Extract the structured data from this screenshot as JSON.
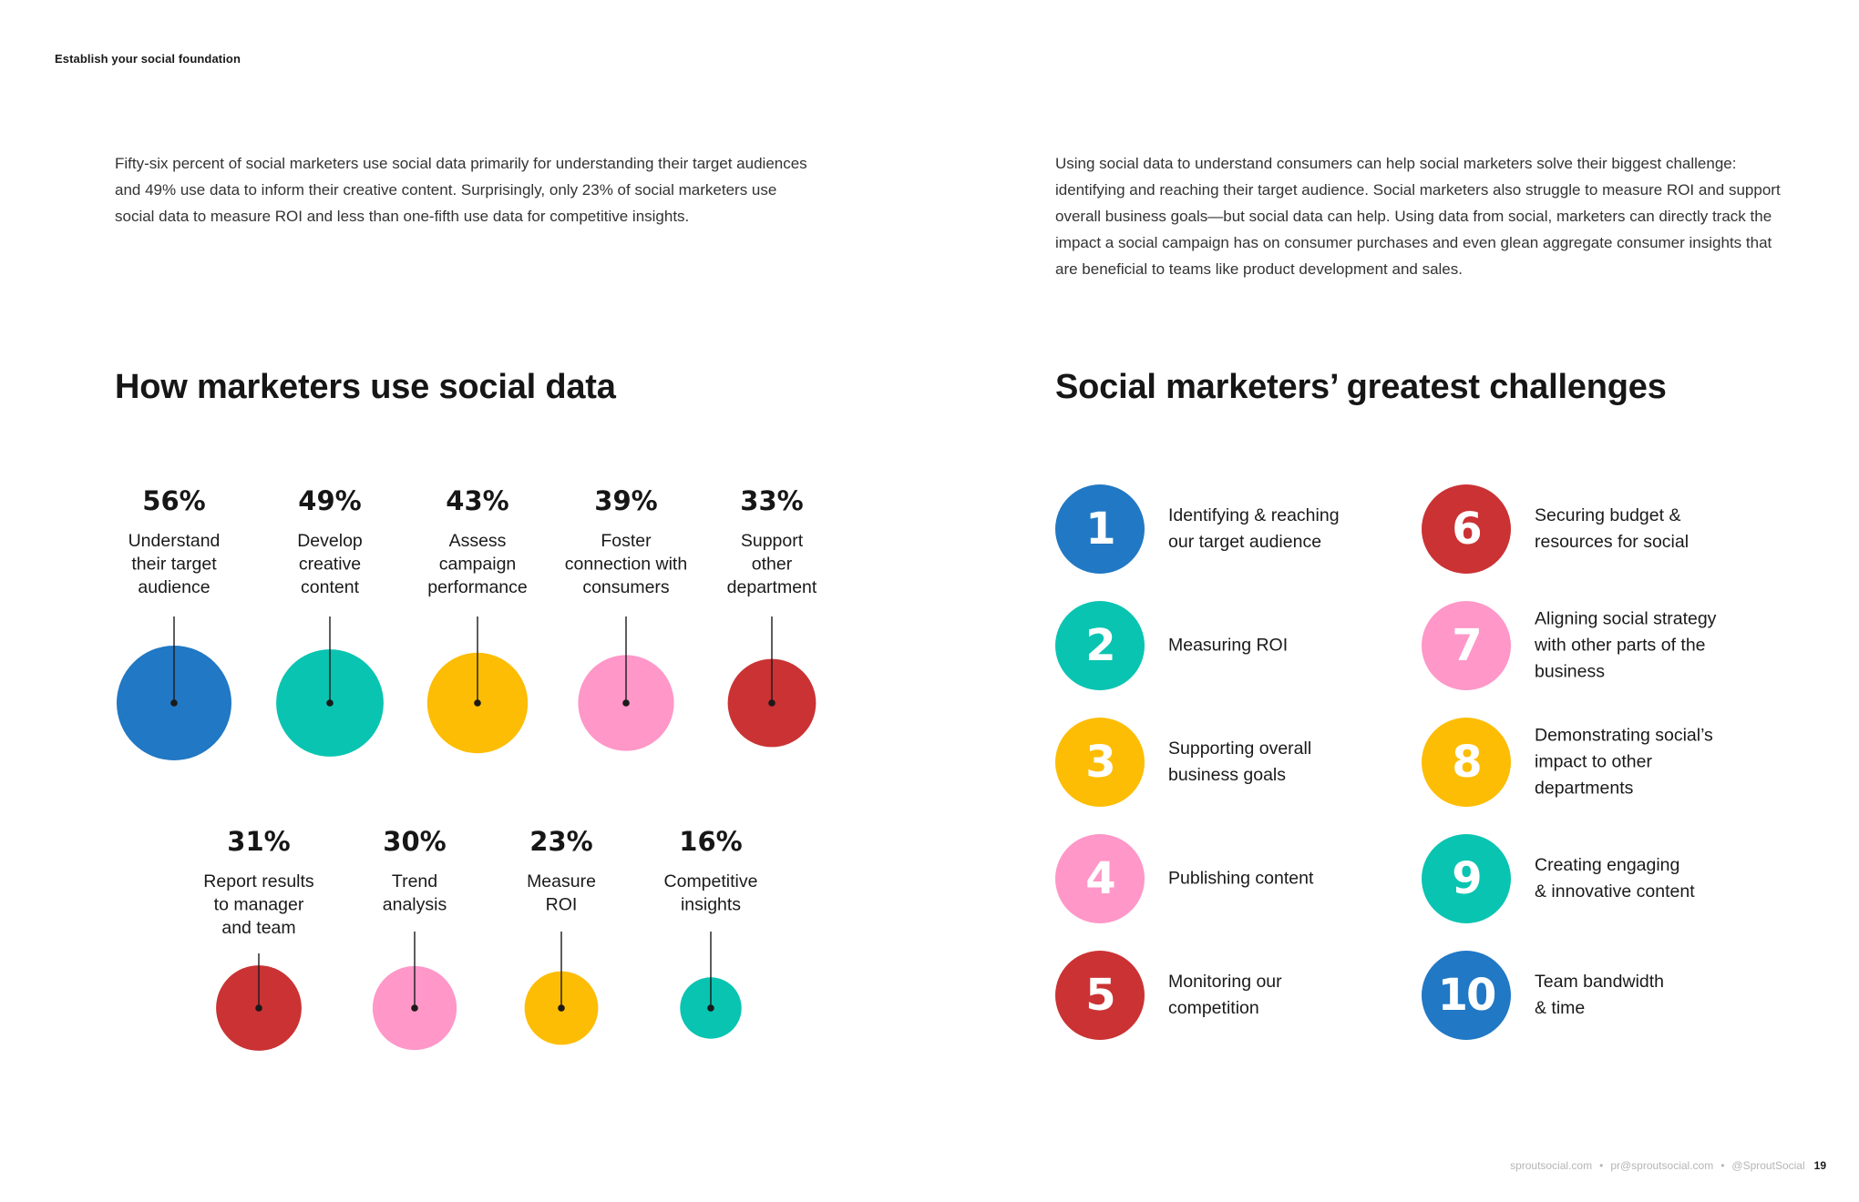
{
  "page": {
    "section_label": "Establish your social foundation",
    "intro_left": "Fifty-six percent of social marketers use social data primarily for understanding their target audiences and 49% use data to inform their creative content. Surprisingly, only 23% of social marketers use social data to measure ROI and less than one-fifth use data for competitive insights.",
    "intro_right": "Using social data to understand consumers can help social marketers solve their biggest challenge: identifying and reaching their target audience. Social marketers also struggle to measure ROI and support overall business goals—but social data can help. Using data from social, marketers can directly track the impact a social campaign has on consumer purchases and even glean aggregate consumer insights that are beneficial to teams like product development and sales.",
    "heading_left": "How marketers use social data",
    "heading_right": "Social marketers’ greatest challenges"
  },
  "chart_data": {
    "type": "bubble",
    "title": "How marketers use social data",
    "unit": "%",
    "items": [
      {
        "value": 56,
        "pct_label": "56%",
        "label_lines": [
          "Understand",
          "their target",
          "audience"
        ],
        "color": "#2178C4"
      },
      {
        "value": 49,
        "pct_label": "49%",
        "label_lines": [
          "Develop",
          "creative",
          "content"
        ],
        "color": "#09C4B1"
      },
      {
        "value": 43,
        "pct_label": "43%",
        "label_lines": [
          "Assess",
          "campaign",
          "performance"
        ],
        "color": "#FDBD04"
      },
      {
        "value": 39,
        "pct_label": "39%",
        "label_lines": [
          "Foster",
          "connection with",
          "consumers"
        ],
        "color": "#FF97C8"
      },
      {
        "value": 33,
        "pct_label": "33%",
        "label_lines": [
          "Support",
          "other",
          "department"
        ],
        "color": "#CB3234"
      },
      {
        "value": 31,
        "pct_label": "31%",
        "label_lines": [
          "Report results",
          "to manager",
          "and team"
        ],
        "color": "#CB3234"
      },
      {
        "value": 30,
        "pct_label": "30%",
        "label_lines": [
          "Trend",
          "analysis"
        ],
        "color": "#FF97C8"
      },
      {
        "value": 23,
        "pct_label": "23%",
        "label_lines": [
          "Measure",
          "ROI"
        ],
        "color": "#FDBD04"
      },
      {
        "value": 16,
        "pct_label": "16%",
        "label_lines": [
          "Competitive",
          "insights"
        ],
        "color": "#09C4B1"
      }
    ]
  },
  "challenges": [
    {
      "number": "1",
      "text": "Identifying & reaching\nour target audience",
      "color": "#2178C4"
    },
    {
      "number": "2",
      "text": "Measuring ROI",
      "color": "#09C4B1"
    },
    {
      "number": "3",
      "text": "Supporting overall\nbusiness goals",
      "color": "#FDBD04"
    },
    {
      "number": "4",
      "text": "Publishing content",
      "color": "#FF97C8"
    },
    {
      "number": "5",
      "text": "Monitoring our\ncompetition",
      "color": "#CB3234"
    },
    {
      "number": "6",
      "text": "Securing budget &\nresources for social",
      "color": "#CB3234"
    },
    {
      "number": "7",
      "text": "Aligning social strategy\nwith other parts of the\nbusiness",
      "color": "#FF97C8"
    },
    {
      "number": "8",
      "text": "Demonstrating social’s\nimpact to other\ndepartments",
      "color": "#FDBD04"
    },
    {
      "number": "9",
      "text": "Creating engaging\n& innovative content",
      "color": "#09C4B1"
    },
    {
      "number": "10",
      "text": "Team bandwidth\n& time",
      "color": "#2178C4"
    }
  ],
  "footer": {
    "website": "sproutsocial.com",
    "email": "pr@sproutsocial.com",
    "handle": "@SproutSocial",
    "separator": "•",
    "page_number": "19"
  }
}
